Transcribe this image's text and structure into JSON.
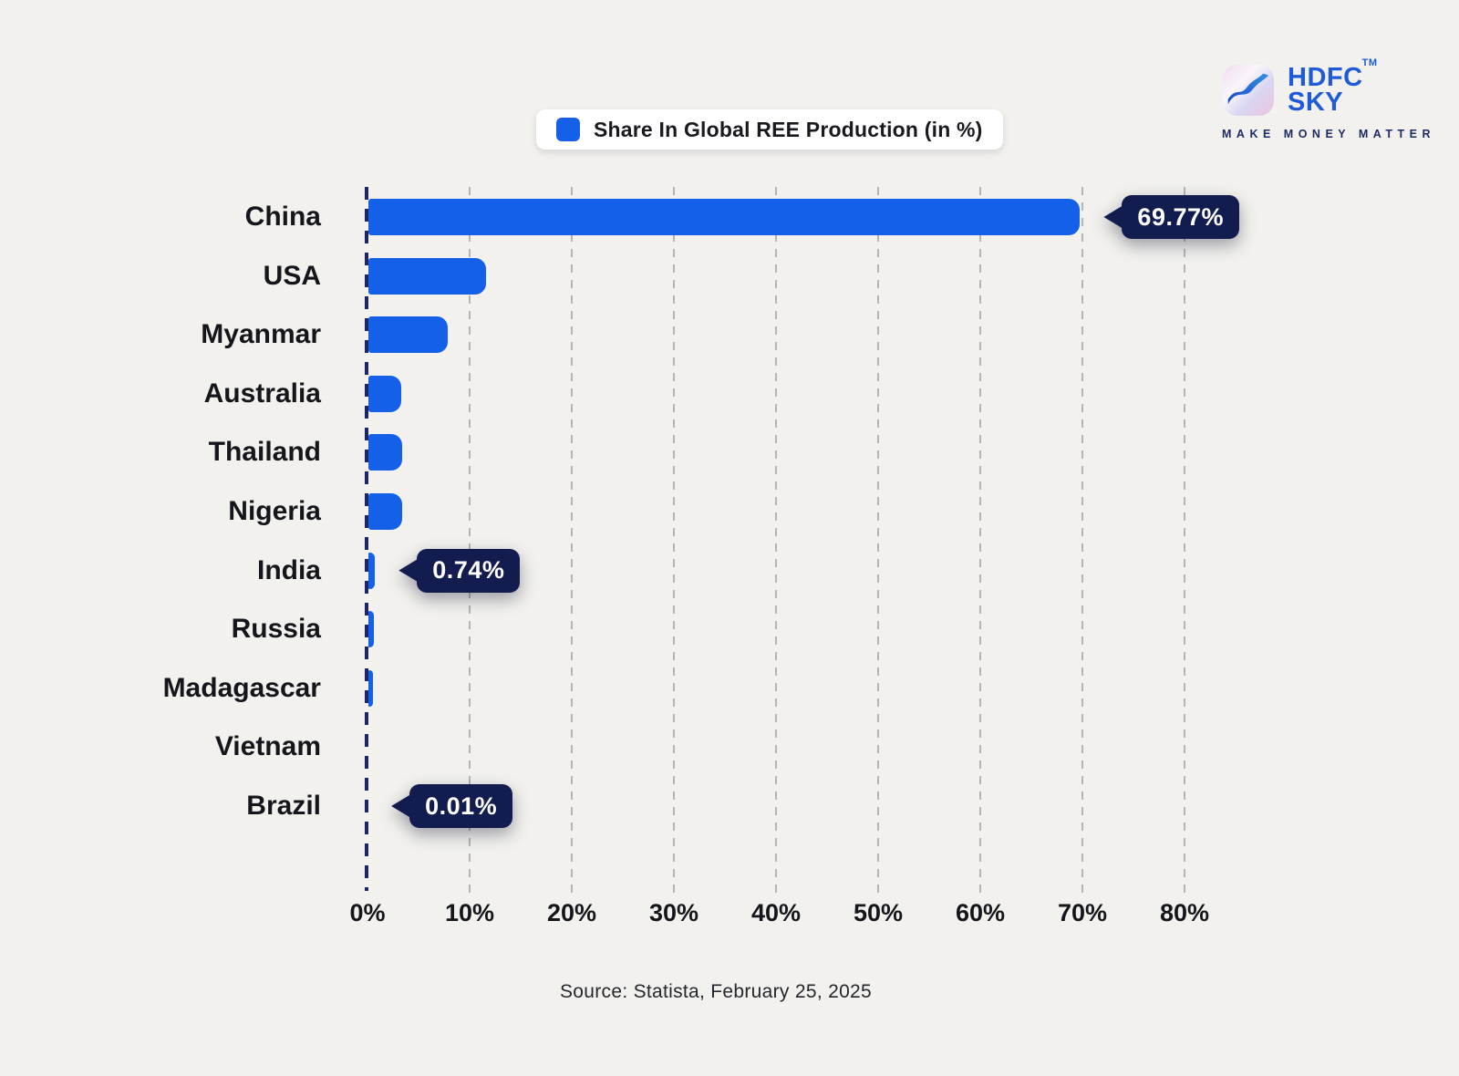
{
  "header": {
    "logo": {
      "brand_line1": "HDFC",
      "brand_line2": "SKY",
      "trademark": "TM",
      "tagline": "MAKE MONEY MATTER"
    }
  },
  "chart_data": {
    "type": "bar",
    "orientation": "horizontal",
    "legend": [
      "Share In Global REE Production (in %)"
    ],
    "legend_position": "top-center",
    "categories": [
      "China",
      "USA",
      "Myanmar",
      "Australia",
      "Thailand",
      "Nigeria",
      "India",
      "Russia",
      "Madagascar",
      "Vietnam",
      "Brazil"
    ],
    "values": [
      69.77,
      11.6,
      7.9,
      3.3,
      3.4,
      3.4,
      0.74,
      0.65,
      0.5,
      0.08,
      0.01
    ],
    "value_labels": [
      {
        "index": 0,
        "category": "China",
        "label": "69.77%"
      },
      {
        "index": 6,
        "category": "India",
        "label": "0.74%"
      },
      {
        "index": 10,
        "category": "Brazil",
        "label": "0.01%"
      }
    ],
    "x_ticks": [
      "0%",
      "10%",
      "20%",
      "30%",
      "40%",
      "50%",
      "60%",
      "70%",
      "80%"
    ],
    "xlim": [
      0,
      80
    ],
    "xlabel": "",
    "ylabel": "",
    "grid": "vertical-dashed",
    "bar_color": "#1560e8",
    "callout_color": "#131c4f",
    "zero_line_color": "#1c2566",
    "background_color": "#f2f1ed"
  },
  "footer": {
    "source": "Source: Statista, February 25, 2025"
  }
}
